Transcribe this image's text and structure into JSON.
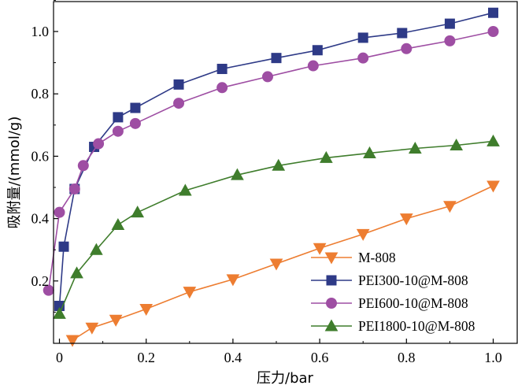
{
  "chart_data": {
    "type": "line",
    "title": "",
    "xlabel": "压力/bar",
    "ylabel": "吸附量/(mmol/g)",
    "xlim": [
      0,
      1.05
    ],
    "ylim": [
      0,
      1.1
    ],
    "x_ticks": [
      "0",
      "0.2",
      "0.4",
      "0.6",
      "0.8",
      "1.0"
    ],
    "x_tick_values": [
      0,
      0.2,
      0.4,
      0.6,
      0.8,
      1.0
    ],
    "y_ticks": [
      "0.2",
      "0.4",
      "0.6",
      "0.8",
      "1.0"
    ],
    "y_tick_values": [
      0.2,
      0.4,
      0.6,
      0.8,
      1.0
    ],
    "legend_position": "bottom-right",
    "series": [
      {
        "name": "M-808",
        "color": "#ED7D31",
        "marker": "triangle-down",
        "x": [
          0.03,
          0.075,
          0.13,
          0.2,
          0.3,
          0.4,
          0.5,
          0.6,
          0.7,
          0.8,
          0.9,
          1.0
        ],
        "y": [
          0.01,
          0.05,
          0.075,
          0.11,
          0.165,
          0.205,
          0.255,
          0.305,
          0.35,
          0.4,
          0.44,
          0.505
        ]
      },
      {
        "name": "PEI300-10@M-808",
        "color": "#2E3A87",
        "marker": "square",
        "x": [
          0.0,
          0.01,
          0.035,
          0.08,
          0.135,
          0.175,
          0.275,
          0.375,
          0.5,
          0.595,
          0.7,
          0.79,
          0.9,
          1.0
        ],
        "y": [
          0.12,
          0.31,
          0.495,
          0.63,
          0.725,
          0.755,
          0.83,
          0.88,
          0.915,
          0.94,
          0.98,
          0.995,
          1.025,
          1.06
        ]
      },
      {
        "name": "PEI600-10@M-808",
        "color": "#9E4EA3",
        "marker": "circle",
        "x": [
          -0.025,
          0.0,
          0.035,
          0.055,
          0.09,
          0.135,
          0.175,
          0.275,
          0.375,
          0.48,
          0.585,
          0.7,
          0.8,
          0.9,
          1.0
        ],
        "y": [
          0.17,
          0.42,
          0.495,
          0.57,
          0.64,
          0.68,
          0.705,
          0.77,
          0.82,
          0.855,
          0.89,
          0.915,
          0.945,
          0.97,
          1.0
        ]
      },
      {
        "name": "PEI1800-10@M-808",
        "color": "#3F7D2C",
        "marker": "triangle-up",
        "x": [
          0.0,
          0.04,
          0.085,
          0.135,
          0.18,
          0.29,
          0.41,
          0.505,
          0.615,
          0.715,
          0.82,
          0.915,
          1.0
        ],
        "y": [
          0.095,
          0.225,
          0.3,
          0.38,
          0.42,
          0.49,
          0.54,
          0.57,
          0.595,
          0.61,
          0.625,
          0.635,
          0.648
        ]
      }
    ]
  }
}
